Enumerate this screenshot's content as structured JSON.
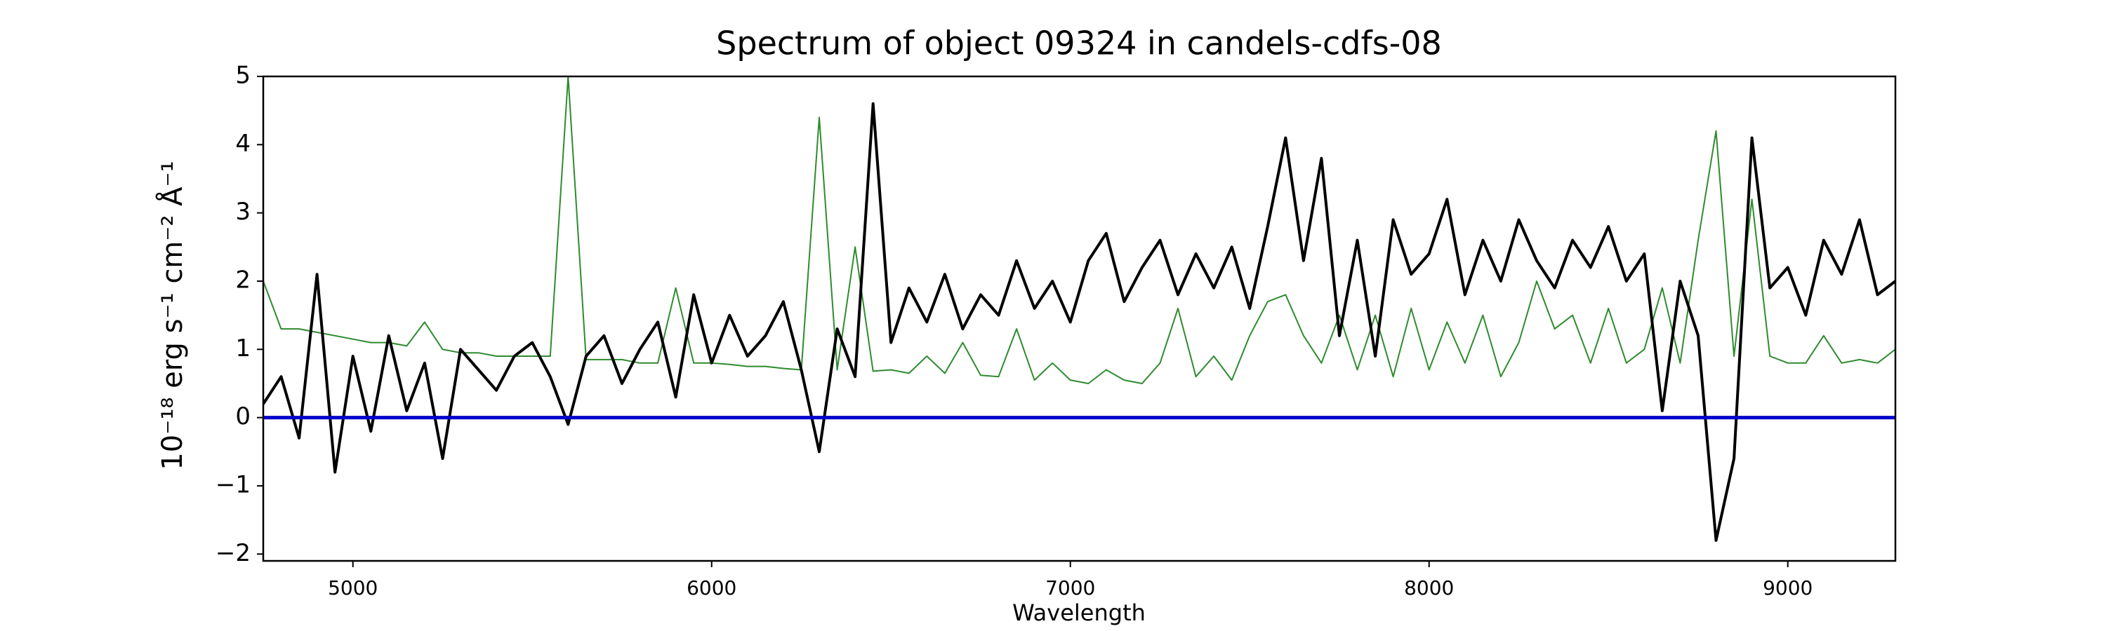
{
  "chart_data": {
    "type": "line",
    "title": "Spectrum of object 09324 in candels-cdfs-08",
    "x_label": "Wavelength",
    "y_label": "10⁻¹⁸ erg s⁻¹ cm⁻² Å⁻¹",
    "x": [
      4750,
      4800,
      4850,
      4900,
      4950,
      5000,
      5050,
      5100,
      5150,
      5200,
      5250,
      5300,
      5350,
      5400,
      5450,
      5500,
      5550,
      5600,
      5650,
      5700,
      5750,
      5800,
      5850,
      5900,
      5950,
      6000,
      6050,
      6100,
      6150,
      6200,
      6250,
      6300,
      6350,
      6400,
      6450,
      6500,
      6550,
      6600,
      6650,
      6700,
      6750,
      6800,
      6850,
      6900,
      6950,
      7000,
      7050,
      7100,
      7150,
      7200,
      7250,
      7300,
      7350,
      7400,
      7450,
      7500,
      7550,
      7600,
      7650,
      7700,
      7750,
      7800,
      7850,
      7900,
      7950,
      8000,
      8050,
      8100,
      8150,
      8200,
      8250,
      8300,
      8350,
      8400,
      8450,
      8500,
      8550,
      8600,
      8650,
      8700,
      8750,
      8800,
      8850,
      8900,
      8950,
      9000,
      9050,
      9100,
      9150,
      9200,
      9250,
      9300
    ],
    "series": [
      {
        "color": "#2e8b2e",
        "width": 2,
        "values": [
          2.0,
          1.3,
          1.3,
          1.25,
          1.2,
          1.15,
          1.1,
          1.1,
          1.05,
          1.4,
          1.0,
          0.95,
          0.95,
          0.9,
          0.9,
          0.9,
          0.9,
          5.0,
          0.85,
          0.85,
          0.85,
          0.8,
          0.8,
          1.9,
          0.8,
          0.8,
          0.78,
          0.75,
          0.75,
          0.72,
          0.7,
          4.4,
          0.7,
          2.5,
          0.68,
          0.7,
          0.65,
          0.9,
          0.65,
          1.1,
          0.62,
          0.6,
          1.3,
          0.55,
          0.8,
          0.55,
          0.5,
          0.7,
          0.55,
          0.5,
          0.8,
          1.6,
          0.6,
          0.9,
          0.55,
          1.2,
          1.7,
          1.8,
          1.2,
          0.8,
          1.5,
          0.7,
          1.5,
          0.6,
          1.6,
          0.7,
          1.4,
          0.8,
          1.5,
          0.6,
          1.1,
          2.0,
          1.3,
          1.5,
          0.8,
          1.6,
          0.8,
          1.0,
          1.9,
          0.8,
          2.6,
          4.2,
          0.9,
          3.2,
          0.9,
          0.8,
          0.8,
          1.2,
          0.8,
          0.85,
          0.8,
          1.0
        ]
      },
      {
        "color": "#000000",
        "width": 4,
        "values": [
          0.2,
          0.6,
          -0.3,
          2.1,
          -0.8,
          0.9,
          -0.2,
          1.2,
          0.1,
          0.8,
          -0.6,
          1.0,
          0.7,
          0.4,
          0.9,
          1.1,
          0.6,
          -0.1,
          0.9,
          1.2,
          0.5,
          1.0,
          1.4,
          0.3,
          1.8,
          0.8,
          1.5,
          0.9,
          1.2,
          1.7,
          0.7,
          -0.5,
          1.3,
          0.6,
          4.6,
          1.1,
          1.9,
          1.4,
          2.1,
          1.3,
          1.8,
          1.5,
          2.3,
          1.6,
          2.0,
          1.4,
          2.3,
          2.7,
          1.7,
          2.2,
          2.6,
          1.8,
          2.4,
          1.9,
          2.5,
          1.6,
          2.8,
          4.1,
          2.3,
          3.8,
          1.2,
          2.6,
          0.9,
          2.9,
          2.1,
          2.4,
          3.2,
          1.8,
          2.6,
          2.0,
          2.9,
          2.3,
          1.9,
          2.6,
          2.2,
          2.8,
          2.0,
          2.4,
          0.1,
          2.0,
          1.2,
          -1.8,
          -0.6,
          4.1,
          1.9,
          2.2,
          1.5,
          2.6,
          2.1,
          2.9,
          1.8,
          2.0
        ]
      }
    ],
    "hlines": [
      {
        "y": 0,
        "color": "#0000cc",
        "width": 5
      }
    ],
    "xlim": [
      4750,
      9300
    ],
    "ylim": [
      -2.1,
      5
    ],
    "xticks": [
      5000,
      6000,
      7000,
      8000,
      9000
    ],
    "yticks": [
      {
        "value": -2,
        "label": "−2"
      },
      {
        "value": -1,
        "label": "−1"
      },
      0,
      1,
      2,
      3,
      4,
      5
    ],
    "grid": false
  }
}
